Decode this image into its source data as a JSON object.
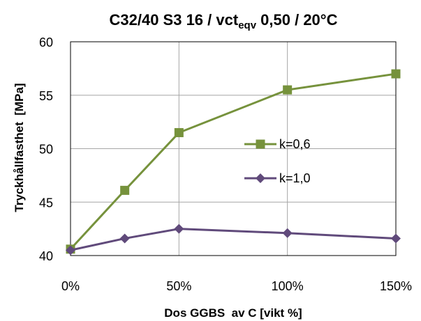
{
  "chart_data": {
    "type": "line",
    "title": {
      "main": "C32/40 S3 16 / vct",
      "subscript": "eqv",
      "suffix": " 0,50 / 20°C"
    },
    "xlabel": "Dos GGBS  av C [vikt %]",
    "ylabel": "Tryckhållfasthet  [MPa]",
    "x": [
      0,
      25,
      50,
      100,
      150
    ],
    "x_ticks": [
      0,
      50,
      100,
      150
    ],
    "x_tick_labels": [
      "0%",
      "50%",
      "100%",
      "150%"
    ],
    "xlim": [
      0,
      150
    ],
    "y_ticks": [
      40,
      45,
      50,
      55,
      60
    ],
    "y_tick_labels": [
      "40",
      "45",
      "50",
      "55",
      "60"
    ],
    "ylim": [
      40,
      60
    ],
    "grid": true,
    "legend_position": "right-center",
    "series": [
      {
        "name": "k=0,6",
        "values": [
          40.6,
          46.1,
          51.5,
          55.5,
          57.0
        ],
        "color": "#76923c",
        "marker": "square"
      },
      {
        "name": "k=1,0",
        "values": [
          40.5,
          41.6,
          42.5,
          42.1,
          41.6
        ],
        "color": "#604a7b",
        "marker": "diamond"
      }
    ]
  }
}
